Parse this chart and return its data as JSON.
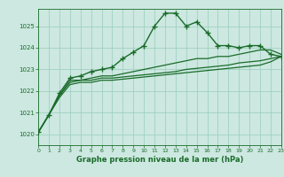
{
  "title": "Graphe pression niveau de la mer (hPa)",
  "background_color": "#cce8e0",
  "grid_color": "#99ccbb",
  "line_color": "#1a6b2a",
  "xlim": [
    0,
    23
  ],
  "ylim": [
    1019.5,
    1025.8
  ],
  "yticks": [
    1020,
    1021,
    1022,
    1023,
    1024,
    1025
  ],
  "xticks": [
    0,
    1,
    2,
    3,
    4,
    5,
    6,
    7,
    8,
    9,
    10,
    11,
    12,
    13,
    14,
    15,
    16,
    17,
    18,
    19,
    20,
    21,
    22,
    23
  ],
  "series": [
    {
      "x": [
        0,
        1,
        2,
        3,
        4,
        5,
        6,
        7,
        8,
        9,
        10,
        11,
        12,
        13,
        14,
        15,
        16,
        17,
        18,
        19,
        20,
        21,
        22,
        23
      ],
      "y": [
        1020.1,
        1020.9,
        1021.9,
        1022.6,
        1022.7,
        1022.9,
        1023.0,
        1023.1,
        1023.5,
        1023.8,
        1024.1,
        1025.0,
        1025.6,
        1025.6,
        1025.0,
        1025.2,
        1024.7,
        1024.1,
        1024.1,
        1024.0,
        1024.1,
        1024.1,
        1023.7,
        1023.6
      ],
      "marker": "+",
      "linewidth": 1.0,
      "markersize": 4
    },
    {
      "x": [
        0,
        1,
        2,
        3,
        4,
        5,
        6,
        7,
        8,
        9,
        10,
        11,
        12,
        13,
        14,
        15,
        16,
        17,
        18,
        19,
        20,
        21,
        22,
        23
      ],
      "y": [
        1020.1,
        1020.9,
        1021.8,
        1022.5,
        1022.5,
        1022.6,
        1022.7,
        1022.7,
        1022.8,
        1022.9,
        1023.0,
        1023.1,
        1023.2,
        1023.3,
        1023.4,
        1023.5,
        1023.5,
        1023.6,
        1023.6,
        1023.7,
        1023.8,
        1023.9,
        1023.9,
        1023.7
      ],
      "marker": null,
      "linewidth": 0.9,
      "markersize": 0
    },
    {
      "x": [
        0,
        1,
        2,
        3,
        4,
        5,
        6,
        7,
        8,
        9,
        10,
        11,
        12,
        13,
        14,
        15,
        16,
        17,
        18,
        19,
        20,
        21,
        22,
        23
      ],
      "y": [
        1020.1,
        1020.9,
        1021.8,
        1022.4,
        1022.5,
        1022.5,
        1022.6,
        1022.6,
        1022.65,
        1022.7,
        1022.75,
        1022.8,
        1022.85,
        1022.9,
        1023.0,
        1023.05,
        1023.1,
        1023.15,
        1023.2,
        1023.3,
        1023.35,
        1023.4,
        1023.5,
        1023.6
      ],
      "marker": null,
      "linewidth": 0.9,
      "markersize": 0
    },
    {
      "x": [
        0,
        1,
        2,
        3,
        4,
        5,
        6,
        7,
        8,
        9,
        10,
        11,
        12,
        13,
        14,
        15,
        16,
        17,
        18,
        19,
        20,
        21,
        22,
        23
      ],
      "y": [
        1020.1,
        1020.9,
        1021.7,
        1022.3,
        1022.4,
        1022.4,
        1022.5,
        1022.5,
        1022.55,
        1022.6,
        1022.65,
        1022.7,
        1022.75,
        1022.8,
        1022.85,
        1022.9,
        1022.95,
        1023.0,
        1023.05,
        1023.1,
        1023.15,
        1023.2,
        1023.35,
        1023.6
      ],
      "marker": null,
      "linewidth": 0.9,
      "markersize": 0
    }
  ]
}
